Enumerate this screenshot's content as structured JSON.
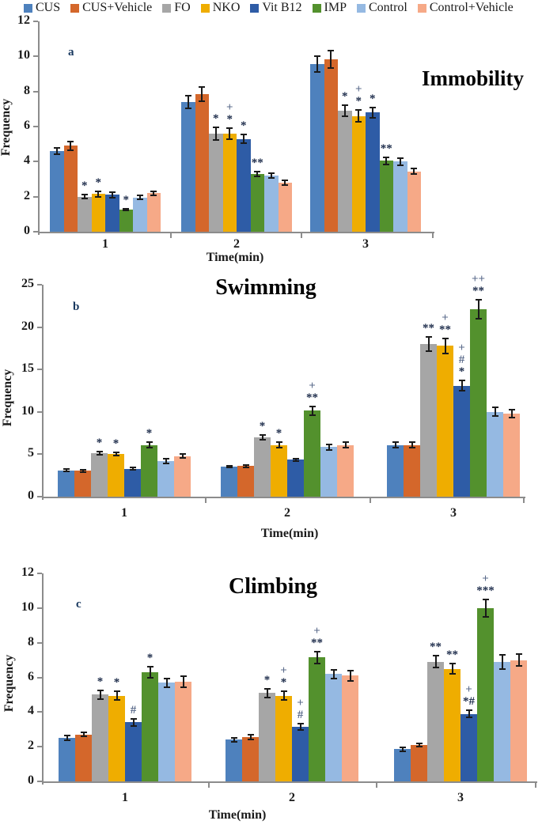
{
  "figure": {
    "shared_xlabel": "Time(min)",
    "shared_ylabel": "Frequency",
    "axis_color": "#8c8c8c",
    "errorbar_color": "#1a1a1a"
  },
  "legend": {
    "position": "top",
    "items": [
      {
        "label": "CUS",
        "color": "#4E81BD"
      },
      {
        "label": "CUS+Vehicle",
        "color": "#D4672B"
      },
      {
        "label": "FO",
        "color": "#A6A6A6"
      },
      {
        "label": "NKO",
        "color": "#EFAD00"
      },
      {
        "label": "Vit B12",
        "color": "#2E5CA6"
      },
      {
        "label": "IMP",
        "color": "#53912D"
      },
      {
        "label": "Control",
        "color": "#95B9E2"
      },
      {
        "label": "Control+Vehicle",
        "color": "#F6A987"
      }
    ]
  },
  "chart_data": [
    {
      "type": "bar",
      "panel_letter": "a",
      "title": "Immobility",
      "title_position": "right-of-plot",
      "xlabel": "Time(min)",
      "ylabel": "Frequency",
      "ylim": [
        0,
        12
      ],
      "ytick_step": 2,
      "categories": [
        "1",
        "2",
        "3"
      ],
      "grid": false,
      "legend_position": "shared-top",
      "series": [
        {
          "name": "CUS",
          "color": "#4E81BD",
          "values": [
            4.6,
            7.4,
            9.55
          ],
          "errors": [
            0.2,
            0.35,
            0.45
          ],
          "annotations": [
            [],
            [],
            []
          ]
        },
        {
          "name": "CUS+Vehicle",
          "color": "#D4672B",
          "values": [
            4.9,
            7.85,
            9.85
          ],
          "errors": [
            0.25,
            0.4,
            0.5
          ],
          "annotations": [
            [],
            [],
            []
          ]
        },
        {
          "name": "FO",
          "color": "#A6A6A6",
          "values": [
            2.0,
            5.6,
            6.9
          ],
          "errors": [
            0.1,
            0.35,
            0.3
          ],
          "annotations": [
            [
              "*"
            ],
            [
              "*"
            ],
            [
              "*"
            ]
          ]
        },
        {
          "name": "NKO",
          "color": "#EFAD00",
          "values": [
            2.15,
            5.6,
            6.6
          ],
          "errors": [
            0.15,
            0.3,
            0.35
          ],
          "annotations": [
            [
              "*"
            ],
            [
              "*",
              "+"
            ],
            [
              "*",
              "+"
            ]
          ]
        },
        {
          "name": "Vit B12",
          "color": "#2E5CA6",
          "values": [
            2.1,
            5.3,
            6.8
          ],
          "errors": [
            0.15,
            0.25,
            0.3
          ],
          "annotations": [
            [],
            [
              "*"
            ],
            [
              "*"
            ]
          ]
        },
        {
          "name": "IMP",
          "color": "#53912D",
          "values": [
            1.25,
            3.3,
            4.05
          ],
          "errors": [
            0.05,
            0.15,
            0.2
          ],
          "annotations": [
            [
              "*"
            ],
            [
              "**"
            ],
            [
              "**"
            ]
          ]
        },
        {
          "name": "Control",
          "color": "#95B9E2",
          "values": [
            1.95,
            3.2,
            4.0
          ],
          "errors": [
            0.12,
            0.12,
            0.2
          ],
          "annotations": [
            [],
            [],
            []
          ]
        },
        {
          "name": "Control+Vehicle",
          "color": "#F6A987",
          "values": [
            2.2,
            2.8,
            3.45
          ],
          "errors": [
            0.12,
            0.12,
            0.15
          ],
          "annotations": [
            [],
            [],
            []
          ]
        }
      ]
    },
    {
      "type": "bar",
      "panel_letter": "b",
      "title": "Swimming",
      "title_position": "top-center",
      "xlabel": "Time(min)",
      "ylabel": "Frequency",
      "ylim": [
        0,
        25
      ],
      "ytick_step": 5,
      "categories": [
        "1",
        "2",
        "3"
      ],
      "grid": false,
      "legend_position": "shared-top",
      "series": [
        {
          "name": "CUS",
          "color": "#4E81BD",
          "values": [
            3.1,
            3.55,
            6.1
          ],
          "errors": [
            0.12,
            0.12,
            0.3
          ],
          "annotations": [
            [],
            [],
            []
          ]
        },
        {
          "name": "CUS+Vehicle",
          "color": "#D4672B",
          "values": [
            3.05,
            3.6,
            6.1
          ],
          "errors": [
            0.15,
            0.15,
            0.3
          ],
          "annotations": [
            [],
            [],
            []
          ]
        },
        {
          "name": "FO",
          "color": "#A6A6A6",
          "values": [
            5.15,
            7.0,
            18.0
          ],
          "errors": [
            0.2,
            0.3,
            0.8
          ],
          "annotations": [
            [
              "*"
            ],
            [
              "*"
            ],
            [
              "**"
            ]
          ]
        },
        {
          "name": "NKO",
          "color": "#EFAD00",
          "values": [
            5.05,
            6.1,
            17.8
          ],
          "errors": [
            0.2,
            0.3,
            0.9
          ],
          "annotations": [
            [
              "*"
            ],
            [
              "*"
            ],
            [
              "**",
              "+"
            ]
          ]
        },
        {
          "name": "Vit B12",
          "color": "#2E5CA6",
          "values": [
            3.3,
            4.35,
            13.1
          ],
          "errors": [
            0.15,
            0.15,
            0.6
          ],
          "annotations": [
            [],
            [],
            [
              "*",
              "#",
              "+"
            ]
          ]
        },
        {
          "name": "IMP",
          "color": "#53912D",
          "values": [
            6.1,
            10.15,
            22.1
          ],
          "errors": [
            0.3,
            0.5,
            1.1
          ],
          "annotations": [
            [
              "*"
            ],
            [
              "**",
              "+"
            ],
            [
              "**",
              "++"
            ]
          ]
        },
        {
          "name": "Control",
          "color": "#95B9E2",
          "values": [
            4.2,
            5.85,
            10.0
          ],
          "errors": [
            0.25,
            0.3,
            0.5
          ],
          "annotations": [
            [],
            [],
            []
          ]
        },
        {
          "name": "Control+Vehicle",
          "color": "#F6A987",
          "values": [
            4.8,
            6.1,
            9.8
          ],
          "errors": [
            0.2,
            0.35,
            0.45
          ],
          "annotations": [
            [],
            [],
            []
          ]
        }
      ]
    },
    {
      "type": "bar",
      "panel_letter": "c",
      "title": "Climbing",
      "title_position": "top-center",
      "xlabel": "Time(min)",
      "ylabel": "Frequency",
      "ylim": [
        0,
        12
      ],
      "ytick_step": 2,
      "categories": [
        "1",
        "2",
        "3"
      ],
      "grid": false,
      "legend_position": "shared-top",
      "series": [
        {
          "name": "CUS",
          "color": "#4E81BD",
          "values": [
            2.5,
            2.4,
            1.85
          ],
          "errors": [
            0.15,
            0.12,
            0.1
          ],
          "annotations": [
            [],
            [],
            []
          ]
        },
        {
          "name": "CUS+Vehicle",
          "color": "#D4672B",
          "values": [
            2.7,
            2.55,
            2.1
          ],
          "errors": [
            0.12,
            0.15,
            0.08
          ],
          "annotations": [
            [],
            [],
            []
          ]
        },
        {
          "name": "FO",
          "color": "#A6A6A6",
          "values": [
            5.0,
            5.1,
            6.9
          ],
          "errors": [
            0.25,
            0.25,
            0.35
          ],
          "annotations": [
            [
              "*"
            ],
            [
              "*"
            ],
            [
              "**"
            ]
          ]
        },
        {
          "name": "NKO",
          "color": "#EFAD00",
          "values": [
            4.95,
            4.95,
            6.5
          ],
          "errors": [
            0.25,
            0.25,
            0.3
          ],
          "annotations": [
            [
              "*"
            ],
            [
              "*",
              "+"
            ],
            [
              "**"
            ]
          ]
        },
        {
          "name": "Vit B12",
          "color": "#2E5CA6",
          "values": [
            3.4,
            3.15,
            3.9
          ],
          "errors": [
            0.2,
            0.2,
            0.2
          ],
          "annotations": [
            [
              "#"
            ],
            [
              "#",
              "+"
            ],
            [
              "*#",
              "+"
            ]
          ]
        },
        {
          "name": "IMP",
          "color": "#53912D",
          "values": [
            6.3,
            7.15,
            10.0
          ],
          "errors": [
            0.3,
            0.35,
            0.5
          ],
          "annotations": [
            [
              "*"
            ],
            [
              "**",
              "+"
            ],
            [
              "***",
              "+"
            ]
          ]
        },
        {
          "name": "Control",
          "color": "#95B9E2",
          "values": [
            5.7,
            6.2,
            6.9
          ],
          "errors": [
            0.25,
            0.25,
            0.4
          ],
          "annotations": [
            [],
            [],
            []
          ]
        },
        {
          "name": "Control+Vehicle",
          "color": "#F6A987",
          "values": [
            5.75,
            6.1,
            7.0
          ],
          "errors": [
            0.3,
            0.3,
            0.35
          ],
          "annotations": [
            [],
            [],
            []
          ]
        }
      ]
    }
  ]
}
